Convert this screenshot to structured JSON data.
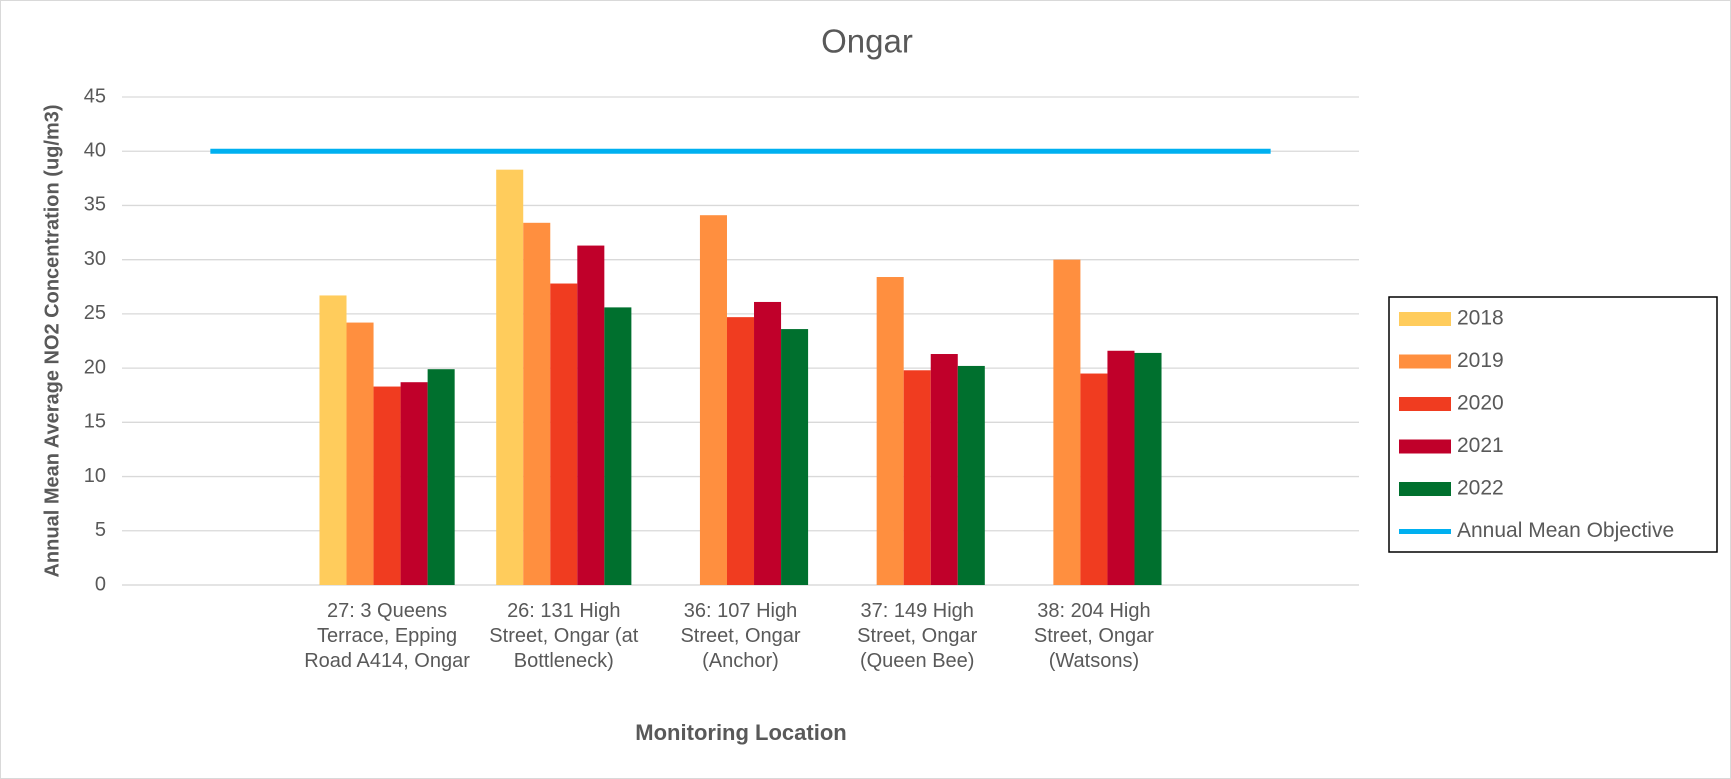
{
  "chart_data": {
    "type": "bar",
    "title": "Ongar",
    "x_label": "Monitoring Location",
    "y_label": "Annual Mean Average NO2 Concentration (ug/m3)",
    "categories": [
      null,
      "27: 3 Queens Terrace, Epping Road A414, Ongar",
      "26: 131 High Street, Ongar (at Bottleneck)",
      "36: 107 High Street, Ongar (Anchor)",
      "37: 149 High Street, Ongar (Queen Bee)",
      "38: 204 High Street, Ongar (Watsons)",
      null
    ],
    "series": [
      {
        "name": "2018",
        "color": "#FFCC5C",
        "values": [
          null,
          26.7,
          38.3,
          null,
          null,
          null,
          null
        ]
      },
      {
        "name": "2019",
        "color": "#FF8F3F",
        "values": [
          null,
          24.2,
          33.4,
          34.1,
          28.4,
          30.0,
          null
        ]
      },
      {
        "name": "2020",
        "color": "#F03C20",
        "values": [
          null,
          18.3,
          27.8,
          24.7,
          19.8,
          19.5,
          null
        ]
      },
      {
        "name": "2021",
        "color": "#C0002A",
        "values": [
          null,
          18.7,
          31.3,
          26.1,
          21.3,
          21.6,
          null
        ]
      },
      {
        "name": "2022",
        "color": "#00702E",
        "values": [
          null,
          19.9,
          25.6,
          23.6,
          20.2,
          21.4,
          null
        ]
      },
      {
        "name": "Annual Mean Objective",
        "type": "line",
        "color": "#00B0F0",
        "values": [
          40,
          40,
          40,
          40,
          40,
          40,
          40
        ]
      }
    ],
    "ylim": [
      0,
      45
    ],
    "yticks": [
      0,
      5,
      10,
      15,
      20,
      25,
      30,
      35,
      40,
      45
    ],
    "grid": true,
    "legend": "right"
  }
}
